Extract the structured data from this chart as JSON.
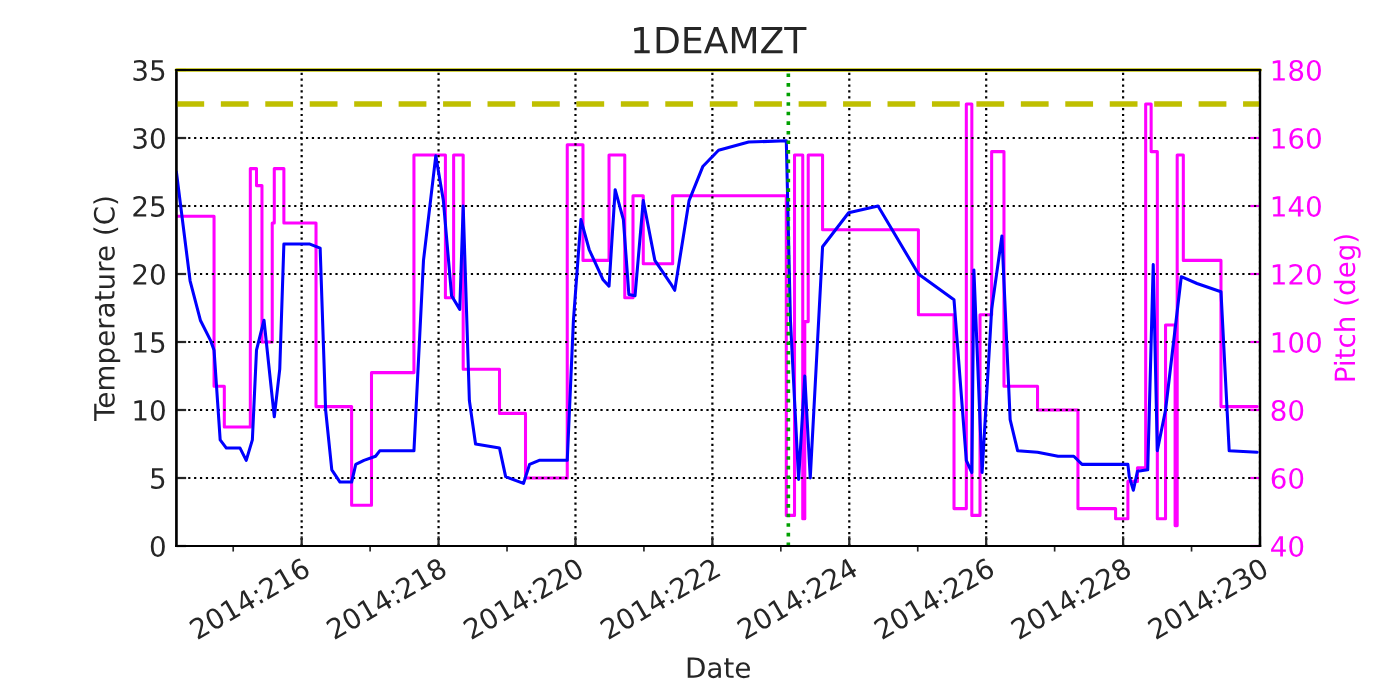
{
  "chart_data": {
    "type": "line",
    "title": "1DEAMZT",
    "xlabel": "Date",
    "ylabel": "Temperature (C)",
    "y2label": "Pitch (deg)",
    "xlim": [
      "2014-08-02T04:05",
      "2014-08-18"
    ],
    "xticks": [
      {
        "value": "2014-08-03",
        "label": null
      },
      {
        "value": "2014-08-04",
        "label": "2014:216"
      },
      {
        "value": "2014-08-05",
        "label": null
      },
      {
        "value": "2014-08-06",
        "label": "2014:218"
      },
      {
        "value": "2014-08-07",
        "label": null
      },
      {
        "value": "2014-08-08",
        "label": "2014:220"
      },
      {
        "value": "2014-08-09",
        "label": null
      },
      {
        "value": "2014-08-10",
        "label": "2014:222"
      },
      {
        "value": "2014-08-11",
        "label": null
      },
      {
        "value": "2014-08-12",
        "label": "2014:224"
      },
      {
        "value": "2014-08-13",
        "label": null
      },
      {
        "value": "2014-08-14",
        "label": "2014:226"
      },
      {
        "value": "2014-08-15",
        "label": null
      },
      {
        "value": "2014-08-16",
        "label": "2014:228"
      },
      {
        "value": "2014-08-17",
        "label": null
      },
      {
        "value": "2014-08-18",
        "label": "2014:230"
      }
    ],
    "ylim": [
      0,
      35
    ],
    "yticks": [
      0,
      5,
      10,
      15,
      20,
      25,
      30,
      35
    ],
    "y2lim": [
      40,
      180
    ],
    "y2ticks": [
      40,
      60,
      80,
      100,
      120,
      140,
      160,
      180
    ],
    "grid": true,
    "legend": false,
    "ref_lines": [
      {
        "axis": "y",
        "value": 32.5,
        "label": null,
        "color": "#bfbf00",
        "line_style": "dashed"
      },
      {
        "axis": "y",
        "value": 35,
        "label": null,
        "color": "#bfbf00",
        "line_style": "solid"
      },
      {
        "axis": "x",
        "value": "2014-08-11T02:38",
        "label": null,
        "color": "#00a000",
        "line_style": "dotted"
      }
    ],
    "series": [
      {
        "color": "#0000ff",
        "x": [
          "2014-08-02T04:05",
          "2014-08-02T08:53",
          "2014-08-02T12:29",
          "2014-08-02T16:05",
          "2014-08-02T17:17",
          "2014-08-02T19:26",
          "2014-08-02T21:36",
          "2014-08-03T02:24",
          "2014-08-03T04:34",
          "2014-08-03T06:43",
          "2014-08-03T08:10",
          "2014-08-03T10:48",
          "2014-08-03T14:24",
          "2014-08-03T16:19",
          "2014-08-03T17:46",
          "2014-08-04T02:53",
          "2014-08-04T06:29",
          "2014-08-04T08:24",
          "2014-08-04T10:34",
          "2014-08-04T13:26",
          "2014-08-04T17:31",
          "2014-08-04T18:58",
          "2014-08-04T21:50",
          "2014-08-05T01:55",
          "2014-08-05T03:22",
          "2014-08-05T15:22",
          "2014-08-05T18:43",
          "2014-08-05T23:02",
          "2014-08-06T01:41",
          "2014-08-06T04:34",
          "2014-08-06T07:26",
          "2014-08-06T08:38",
          "2014-08-06T10:48",
          "2014-08-06T12:58",
          "2014-08-06T21:22",
          "2014-08-06T23:31",
          "2014-08-07T05:46",
          "2014-08-07T07:55",
          "2014-08-07T11:17",
          "2014-08-07T21:07",
          "2014-08-07T23:17",
          "2014-08-08T01:55",
          "2014-08-08T04:48",
          "2014-08-08T09:36",
          "2014-08-08T11:46",
          "2014-08-08T13:55",
          "2014-08-08T16:48",
          "2014-08-08T18:43",
          "2014-08-08T20:53",
          "2014-08-08T23:46",
          "2014-08-09T03:50",
          "2014-08-09T09:22",
          "2014-08-09T10:48",
          "2014-08-09T15:50",
          "2014-08-09T20:38",
          "2014-08-10T02:10",
          "2014-08-10T12:43",
          "2014-08-11T01:55",
          "2014-08-11T03:22",
          "2014-08-11T06:14",
          "2014-08-11T08:24",
          "2014-08-11T10:19",
          "2014-08-11T14:38",
          "2014-08-11T23:46",
          "2014-08-12T10:05",
          "2014-08-13T00:14",
          "2014-08-13T12:43",
          "2014-08-13T17:02",
          "2014-08-13T18:58",
          "2014-08-13T19:41",
          "2014-08-13T22:34",
          "2014-08-14T01:55",
          "2014-08-14T05:31",
          "2014-08-14T08:24",
          "2014-08-14T11:02",
          "2014-08-14T18:00",
          "2014-08-15T01:12",
          "2014-08-15T06:43",
          "2014-08-15T09:36",
          "2014-08-15T22:05",
          "2014-08-16T01:41",
          "2014-08-16T02:10",
          "2014-08-16T03:36",
          "2014-08-16T05:02",
          "2014-08-16T08:38",
          "2014-08-16T10:34",
          "2014-08-16T12:00",
          "2014-08-16T14:53",
          "2014-08-16T20:24",
          "2014-08-17T01:55",
          "2014-08-17T10:19",
          "2014-08-17T13:12",
          "2014-08-17T23:02"
        ],
        "values": [
          27.5,
          19.5,
          16.6,
          15.1,
          14.4,
          7.8,
          7.2,
          7.2,
          6.3,
          7.8,
          14.4,
          16.6,
          9.5,
          13,
          22.2,
          22.2,
          21.9,
          10,
          5.6,
          4.7,
          4.7,
          6,
          6.3,
          6.6,
          7,
          7,
          21,
          28.7,
          25.4,
          18.4,
          17.4,
          25,
          10.7,
          7.5,
          7.2,
          5.1,
          4.6,
          6,
          6.3,
          6.3,
          16.6,
          24,
          21.8,
          19.6,
          19.1,
          26.2,
          24,
          18.5,
          18.4,
          25.4,
          21,
          19.3,
          18.8,
          25.4,
          27.9,
          29.1,
          29.7,
          29.8,
          16.6,
          4.9,
          12.5,
          5,
          22,
          24.5,
          25,
          20,
          18.1,
          6.3,
          5.4,
          20.3,
          5.4,
          17.4,
          22.8,
          9.3,
          7,
          6.9,
          6.6,
          6.6,
          6,
          6,
          6,
          5.1,
          4.1,
          5.5,
          5.6,
          20.7,
          7,
          10,
          19.8,
          19.3,
          18.7,
          7,
          6.9
        ]
      },
      {
        "type": "step",
        "axis": "y2",
        "color": "#ff00ff",
        "x": [
          "2014-08-02T04:05",
          "2014-08-02T17:17",
          "2014-08-02T20:53",
          "2014-08-03T06:00",
          "2014-08-03T08:10",
          "2014-08-03T10:05",
          "2014-08-03T13:41",
          "2014-08-03T14:24",
          "2014-08-03T17:46",
          "2014-08-04T05:02",
          "2014-08-04T17:31",
          "2014-08-05T00:29",
          "2014-08-05T15:22",
          "2014-08-06T02:24",
          "2014-08-06T05:17",
          "2014-08-06T08:38",
          "2014-08-06T21:22",
          "2014-08-07T06:29",
          "2014-08-07T21:07",
          "2014-08-08T02:38",
          "2014-08-08T11:46",
          "2014-08-08T17:17",
          "2014-08-08T20:10",
          "2014-08-08T23:46",
          "2014-08-09T10:05",
          "2014-08-11T01:55",
          "2014-08-11T04:48",
          "2014-08-11T07:41",
          "2014-08-11T08:24",
          "2014-08-11T09:36",
          "2014-08-11T14:38",
          "2014-08-13T00:14",
          "2014-08-13T12:43",
          "2014-08-13T17:02",
          "2014-08-13T18:58",
          "2014-08-13T21:50",
          "2014-08-14T01:55",
          "2014-08-14T06:14",
          "2014-08-14T18:00",
          "2014-08-15T08:10",
          "2014-08-15T21:22",
          "2014-08-16T01:41",
          "2014-08-16T05:02",
          "2014-08-16T07:55",
          "2014-08-16T09:50",
          "2014-08-16T12:00",
          "2014-08-16T14:53",
          "2014-08-16T18:14",
          "2014-08-16T18:58",
          "2014-08-16T21:07",
          "2014-08-17T10:19",
          "2014-08-17T23:02"
        ],
        "values": [
          137,
          87,
          75,
          151,
          146,
          100,
          135,
          151,
          135,
          81,
          52,
          91,
          155,
          113,
          155,
          92,
          79,
          60,
          158,
          124,
          155,
          113,
          143,
          123,
          143,
          49,
          155,
          48,
          106,
          155,
          133,
          108,
          51,
          170,
          49,
          108,
          156,
          87,
          80,
          51,
          48,
          59,
          63,
          170,
          156,
          48,
          105,
          46,
          155,
          124,
          81,
          81
        ]
      }
    ]
  }
}
